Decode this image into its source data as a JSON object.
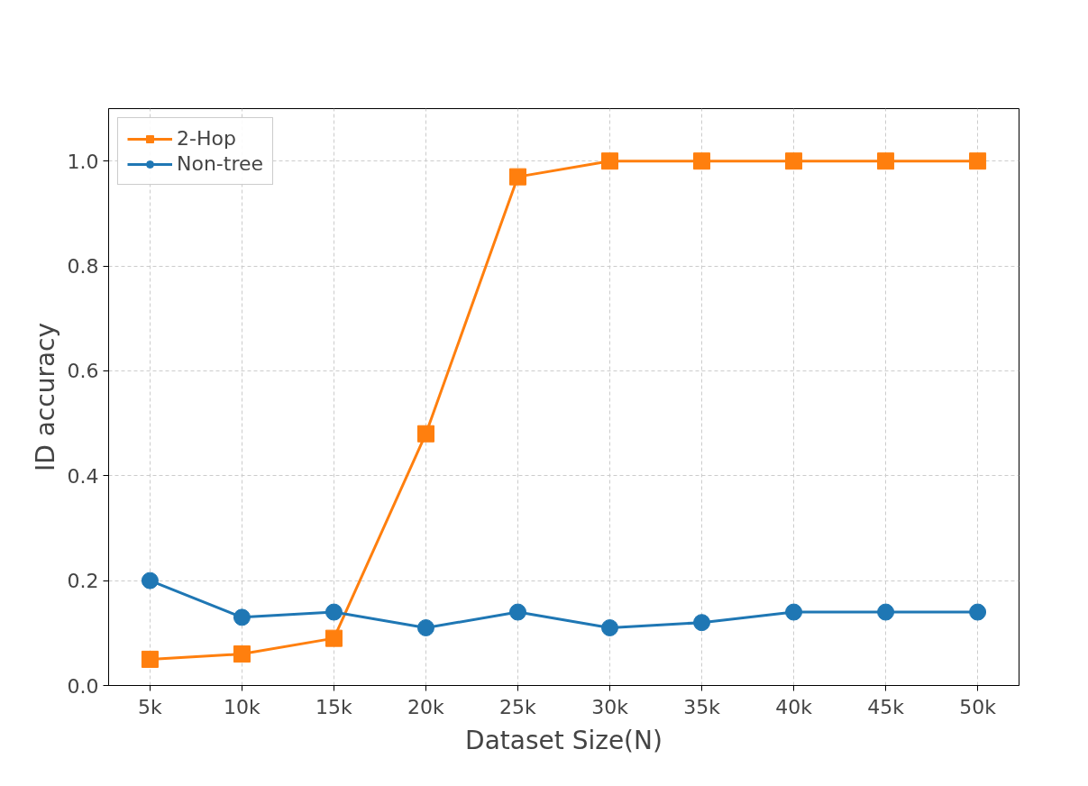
{
  "chart_data": {
    "type": "line",
    "xlabel": "Dataset Size(N)",
    "ylabel": "ID accuracy",
    "categories": [
      "5k",
      "10k",
      "15k",
      "20k",
      "25k",
      "30k",
      "35k",
      "40k",
      "45k",
      "50k"
    ],
    "ylim": [
      0,
      1.1
    ],
    "yticks": [
      {
        "value": 0,
        "label": "0.0"
      },
      0.2,
      0.4,
      0.6,
      0.8,
      {
        "value": 1,
        "label": "1.0"
      }
    ],
    "grid": true,
    "legend": "top left",
    "line_style": "solid",
    "series": [
      {
        "name": "2-Hop",
        "color": "#ff7f0e",
        "marker": "square",
        "values": [
          0.05,
          0.06,
          0.09,
          0.48,
          0.97,
          1.0,
          1.0,
          1.0,
          1.0,
          1.0
        ]
      },
      {
        "name": "Non-tree",
        "color": "#1f77b4",
        "marker": "circle",
        "values": [
          0.2,
          0.13,
          0.14,
          0.11,
          0.14,
          0.11,
          0.12,
          0.14,
          0.14,
          0.14
        ]
      }
    ]
  }
}
